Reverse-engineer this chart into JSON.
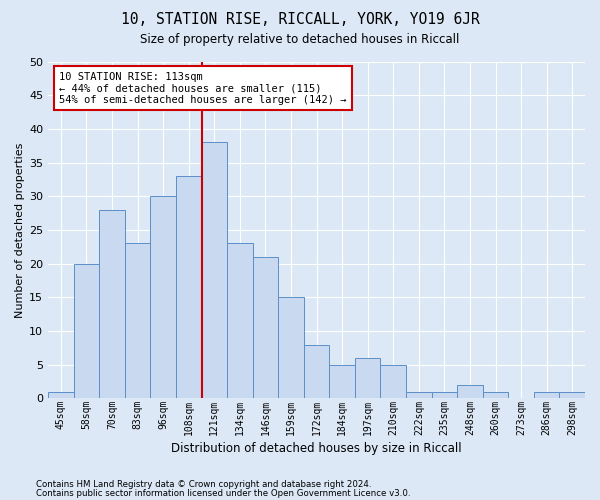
{
  "title": "10, STATION RISE, RICCALL, YORK, YO19 6JR",
  "subtitle": "Size of property relative to detached houses in Riccall",
  "xlabel": "Distribution of detached houses by size in Riccall",
  "ylabel": "Number of detached properties",
  "categories": [
    "45sqm",
    "58sqm",
    "70sqm",
    "83sqm",
    "96sqm",
    "108sqm",
    "121sqm",
    "134sqm",
    "146sqm",
    "159sqm",
    "172sqm",
    "184sqm",
    "197sqm",
    "210sqm",
    "222sqm",
    "235sqm",
    "248sqm",
    "260sqm",
    "273sqm",
    "286sqm",
    "298sqm"
  ],
  "values": [
    1,
    20,
    28,
    23,
    30,
    33,
    38,
    23,
    21,
    15,
    8,
    5,
    6,
    5,
    1,
    1,
    2,
    1,
    0,
    1,
    1
  ],
  "bar_color": "#c8d9f0",
  "bar_edge_color": "#5b8fc9",
  "vline_x": 6.0,
  "vline_color": "#cc0000",
  "ylim": [
    0,
    50
  ],
  "yticks": [
    0,
    5,
    10,
    15,
    20,
    25,
    30,
    35,
    40,
    45,
    50
  ],
  "annotation_text": "10 STATION RISE: 113sqm\n← 44% of detached houses are smaller (115)\n54% of semi-detached houses are larger (142) →",
  "annotation_box_color": "#ffffff",
  "annotation_box_edge": "#cc0000",
  "footer1": "Contains HM Land Registry data © Crown copyright and database right 2024.",
  "footer2": "Contains public sector information licensed under the Open Government Licence v3.0.",
  "background_color": "#dce8f5",
  "grid_color": "#ffffff"
}
